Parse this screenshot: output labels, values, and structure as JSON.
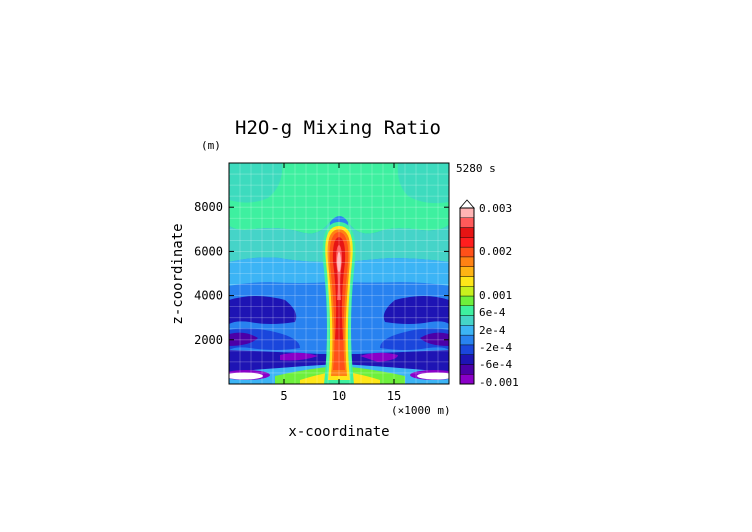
{
  "chart_data": {
    "type": "heatmap",
    "title": "H2O-g Mixing Ratio",
    "xlabel": "x-coordinate",
    "ylabel": "z-coordinate",
    "x_unit_label": "(×1000 m)",
    "y_unit_label": "(m)",
    "time_label": "5280 s",
    "xlim": [
      0,
      20
    ],
    "ylim": [
      0,
      10000
    ],
    "x_ticks": [
      5,
      10,
      15
    ],
    "x_tick_labels": [
      "5",
      "10",
      "15"
    ],
    "y_ticks": [
      2000,
      4000,
      6000,
      8000
    ],
    "y_tick_labels": [
      "2000",
      "4000",
      "6000",
      "8000"
    ],
    "grid": true,
    "colorbar": {
      "colors": [
        "#8a00c8",
        "#4b00a8",
        "#1e14b4",
        "#1a46dc",
        "#2882f0",
        "#3cb4f5",
        "#45d4c8",
        "#3ef0a0",
        "#6ef03c",
        "#c8f01e",
        "#ffe619",
        "#ffb414",
        "#ff8214",
        "#ff5019",
        "#ff1e1e",
        "#e61414",
        "#ff5a5a",
        "#ffb4b4"
      ],
      "tick_labels": [
        "-0.001",
        "-6e-4",
        "-2e-4",
        "2e-4",
        "6e-4",
        "0.001",
        "0.002",
        "0.003"
      ]
    }
  }
}
